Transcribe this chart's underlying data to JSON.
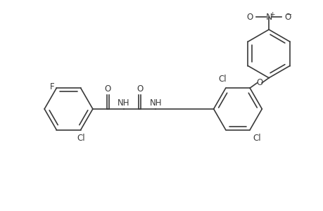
{
  "bg_color": "#ffffff",
  "line_color": "#3a3a3a",
  "line_width": 1.2,
  "font_size": 8.5,
  "figsize": [
    4.6,
    3.0
  ],
  "dpi": 100,
  "xlim": [
    0,
    46
  ],
  "ylim": [
    0,
    30
  ]
}
